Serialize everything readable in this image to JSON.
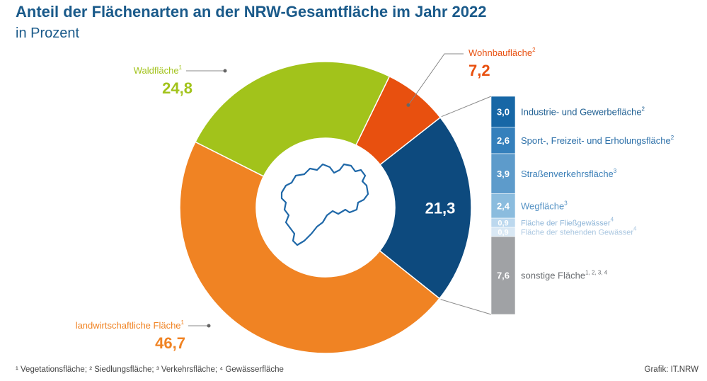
{
  "title": "Anteil der Flächenarten an der NRW-Gesamtfläche im Jahr 2022",
  "subtitle": "in Prozent",
  "chart_data": {
    "type": "pie",
    "title": "Anteil der Flächenarten an der NRW-Gesamtfläche im Jahr 2022",
    "unit": "in Prozent",
    "donut": true,
    "slices": [
      {
        "label": "Wohnbaufläche",
        "sup": "2",
        "value": 7.2,
        "display": "7,2",
        "color": "#e8500f"
      },
      {
        "label": "",
        "sup": "",
        "value": 21.3,
        "display": "21,3",
        "color": "#0d4a7e"
      },
      {
        "label": "landwirtschaftliche Fläche",
        "sup": "1",
        "value": 46.7,
        "display": "46,7",
        "color": "#f08323"
      },
      {
        "label": "Waldfläche",
        "sup": "1",
        "value": 24.8,
        "display": "24,8",
        "color": "#a2c31b"
      }
    ],
    "breakdown": [
      {
        "label": "Industrie- und Gewerbefläche",
        "sup": "2",
        "value": 3.0,
        "display": "3,0",
        "color": "#1767a6",
        "text_color": "#1f5f92"
      },
      {
        "label": "Sport-, Freizeit- und Erholungsfläche",
        "sup": "2",
        "value": 2.6,
        "display": "2,6",
        "color": "#3580bc",
        "text_color": "#2b6fa8"
      },
      {
        "label": "Straßenverkehrsfläche",
        "sup": "3",
        "value": 3.9,
        "display": "3,9",
        "color": "#5d9bcb",
        "text_color": "#3d80b8"
      },
      {
        "label": "Wegfläche",
        "sup": "3",
        "value": 2.4,
        "display": "2,4",
        "color": "#8bbcde",
        "text_color": "#5592c4"
      },
      {
        "label": "Fläche der Fließgewässer",
        "sup": "4",
        "value": 0.9,
        "display": "0,9",
        "color": "#bcd8ee",
        "text_color": "#8fb6d8"
      },
      {
        "label": "Fläche der stehenden Gewässer",
        "sup": "4",
        "value": 0.9,
        "display": "0,9",
        "color": "#d9e8f4",
        "text_color": "#a9c6e0"
      },
      {
        "label": "sonstige Fläche",
        "sup": "1, 2, 3, 4",
        "value": 7.6,
        "display": "7,6",
        "color": "#a0a2a5",
        "text_color": "#6b6e72"
      }
    ]
  },
  "footnote": "¹ Vegetationsfläche;  ² Siedlungsfläche;  ³ Verkehrsfläche;  ⁴ Gewässerfläche",
  "source": "Grafik: IT.NRW"
}
